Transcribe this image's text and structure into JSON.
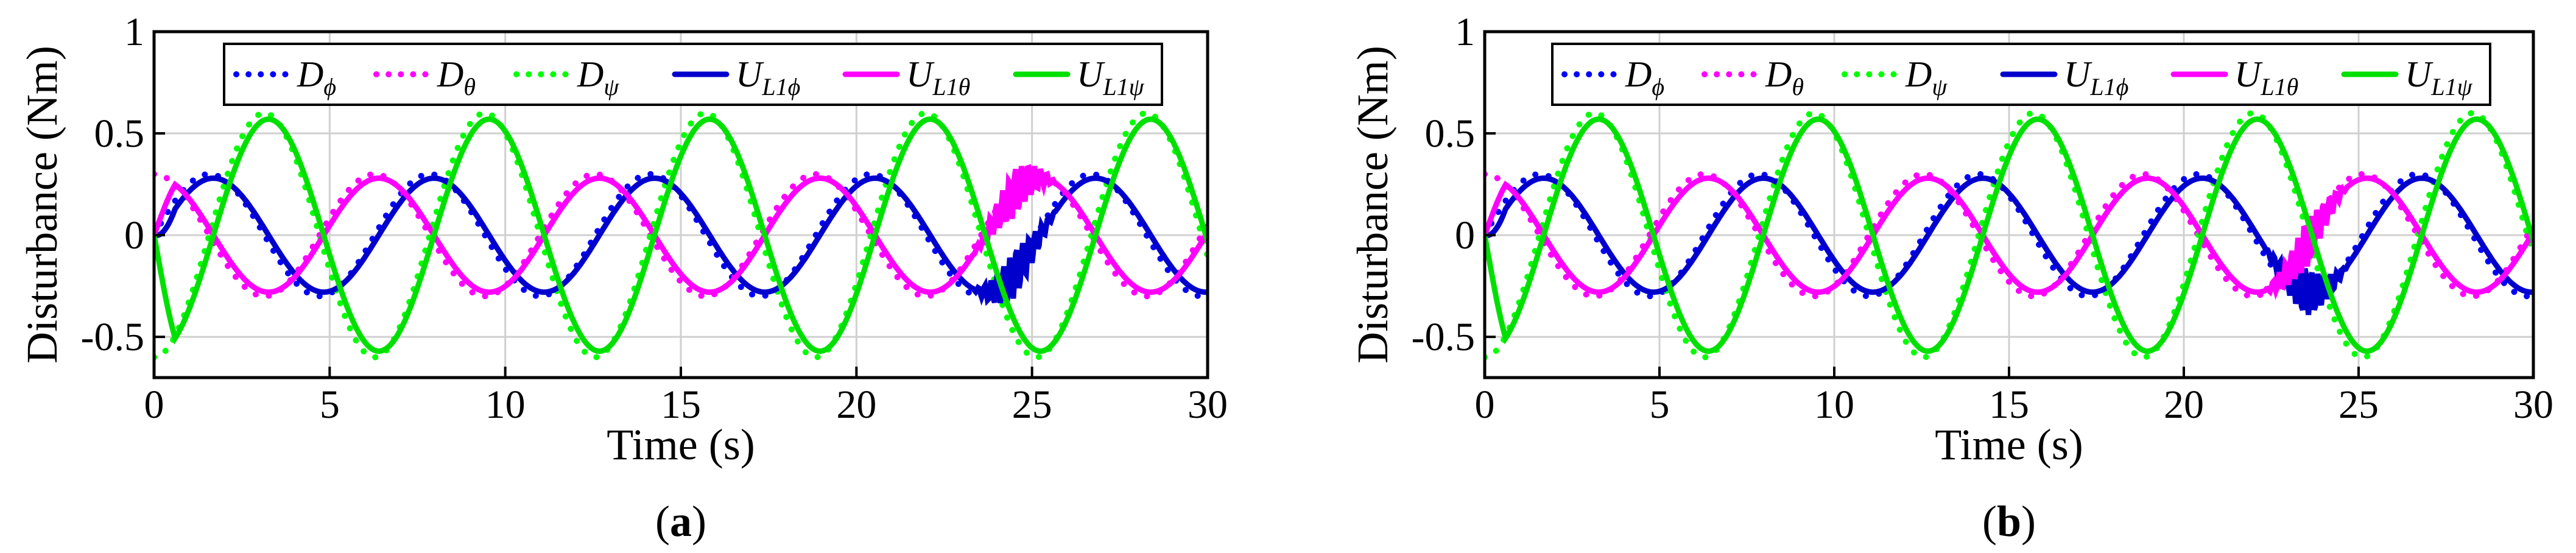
{
  "chart_data": [
    {
      "type": "line",
      "panel_label": "(a)",
      "xlabel": "Time (s)",
      "ylabel": "Disturbance (Nm)",
      "xlim": [
        0,
        30
      ],
      "ylim": [
        -0.7,
        1
      ],
      "xticks": [
        0,
        5,
        10,
        15,
        20,
        25,
        30
      ],
      "xtick_labels": [
        "0",
        "5",
        "10",
        "15",
        "20",
        "25",
        "30"
      ],
      "yticks": [
        -0.5,
        0,
        0.5,
        1
      ],
      "ytick_labels": [
        "-0.5",
        "0",
        "0.5",
        "1"
      ],
      "grid": true,
      "legend_position": "top",
      "series": [
        {
          "name": "D",
          "sub": "ϕ",
          "color": "#0000ff",
          "style": "dotted",
          "amplitude": 0.3,
          "period": 6.28,
          "phase": 0,
          "form": "sin"
        },
        {
          "name": "D",
          "sub": "θ",
          "color": "#ff00ff",
          "style": "dotted",
          "amplitude": 0.3,
          "period": 6.28,
          "phase": 0,
          "form": "cos"
        },
        {
          "name": "D",
          "sub": "ψ",
          "color": "#00ff00",
          "style": "dotted",
          "amplitude": 0.6,
          "period": 6.28,
          "phase": 3.14159,
          "form": "cos"
        },
        {
          "name": "U",
          "sub": "L1ϕ",
          "color": "#0000cc",
          "style": "solid",
          "amplitude": 0.28,
          "period": 6.28,
          "phase": 0,
          "form": "sin",
          "disturb_at": 24.5
        },
        {
          "name": "U",
          "sub": "L1θ",
          "color": "#ff00ff",
          "style": "solid",
          "amplitude": 0.28,
          "period": 6.28,
          "phase": 0,
          "form": "cos",
          "disturb_at": 24.5
        },
        {
          "name": "U",
          "sub": "L1ψ",
          "color": "#00e000",
          "style": "solid",
          "amplitude": 0.57,
          "period": 6.28,
          "phase": 3.14159,
          "form": "cos"
        }
      ]
    },
    {
      "type": "line",
      "panel_label": "(b)",
      "xlabel": "Time (s)",
      "ylabel": "Disturbance (Nm)",
      "xlim": [
        0,
        30
      ],
      "ylim": [
        -0.7,
        1
      ],
      "xticks": [
        0,
        5,
        10,
        15,
        20,
        25,
        30
      ],
      "xtick_labels": [
        "0",
        "5",
        "10",
        "15",
        "20",
        "25",
        "30"
      ],
      "yticks": [
        -0.5,
        0,
        0.5,
        1
      ],
      "ytick_labels": [
        "-0.5",
        "0",
        "0.5",
        "1"
      ],
      "grid": true,
      "legend_position": "top",
      "series": [
        {
          "name": "D",
          "sub": "ϕ",
          "color": "#0000ff",
          "style": "dotted",
          "amplitude": 0.3,
          "period": 6.28,
          "phase": 0,
          "form": "sin"
        },
        {
          "name": "D",
          "sub": "θ",
          "color": "#ff00ff",
          "style": "dotted",
          "amplitude": 0.3,
          "period": 6.28,
          "phase": 0,
          "form": "cos"
        },
        {
          "name": "D",
          "sub": "ψ",
          "color": "#00ff00",
          "style": "dotted",
          "amplitude": 0.6,
          "period": 6.28,
          "phase": 3.14159,
          "form": "cos"
        },
        {
          "name": "U",
          "sub": "L1ϕ",
          "color": "#0000cc",
          "style": "solid",
          "amplitude": 0.28,
          "period": 6.28,
          "phase": 0,
          "form": "sin",
          "disturb_at": 23.5
        },
        {
          "name": "U",
          "sub": "L1θ",
          "color": "#ff00ff",
          "style": "solid",
          "amplitude": 0.28,
          "period": 6.28,
          "phase": 0,
          "form": "cos",
          "disturb_at": 23.5
        },
        {
          "name": "U",
          "sub": "L1ψ",
          "color": "#00e000",
          "style": "solid",
          "amplitude": 0.57,
          "period": 6.28,
          "phase": 3.14159,
          "form": "cos"
        }
      ]
    }
  ]
}
